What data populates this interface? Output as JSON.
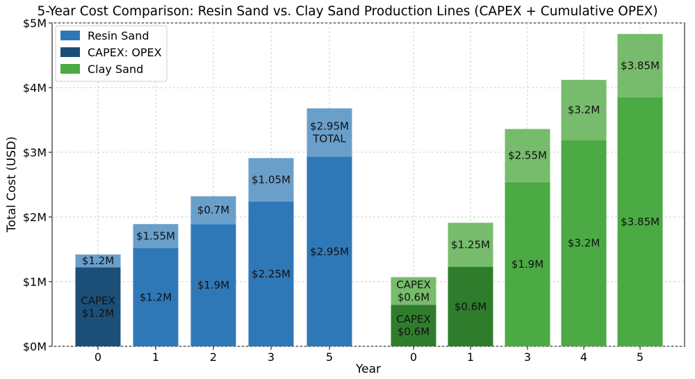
{
  "chart_data": {
    "type": "bar",
    "title": "5-Year Cost Comparison: Resin Sand vs. Clay Sand Production Lines (CAPEX + Cumulative OPEX)",
    "xlabel": "Year",
    "ylabel": "Total Cost (USD)",
    "ylim": [
      0,
      5000000
    ],
    "yticks": [
      "$0M",
      "$1M",
      "$2M",
      "$3M",
      "$4M",
      "$5M"
    ],
    "grid": true,
    "legend_position": "top-left",
    "legend": [
      {
        "label": "Resin Sand",
        "color": "#2f78b8"
      },
      {
        "label": "CAPEX: OPEX",
        "color": "#1b4f78"
      },
      {
        "label": "Clay Sand",
        "color": "#4caa44"
      }
    ],
    "colors": {
      "resin": "#2f78b8",
      "resin_capex": "#1b4f78",
      "resin_top": "#6a9fca",
      "clay": "#4caa44",
      "clay_capex": "#2f7d2c",
      "clay_top": "#77bc6c"
    },
    "series": [
      {
        "name": "Resin Sand",
        "bars": [
          {
            "year": "0",
            "base": 1220000,
            "total": 1420000,
            "base_label": "CAPEX\n$1.2M",
            "top_label": "$1.2M",
            "capex": true
          },
          {
            "year": "1",
            "base": 1520000,
            "total": 1890000,
            "base_label": "$1.2M",
            "top_label": "$1.55M"
          },
          {
            "year": "2",
            "base": 1890000,
            "total": 2320000,
            "base_label": "$1.9M",
            "top_label": "$0.7M"
          },
          {
            "year": "3",
            "base": 2240000,
            "total": 2910000,
            "base_label": "$2.25M",
            "top_label": "$1.05M"
          },
          {
            "year": "5",
            "base": 2930000,
            "total": 3680000,
            "base_label": "$2.95M",
            "top_label": "$2.95M\nTOTAL"
          }
        ]
      },
      {
        "name": "Clay Sand",
        "bars": [
          {
            "year": "0",
            "base": 640000,
            "total": 1070000,
            "base_label": "CAPEX\n$0.6M",
            "top_label": "CAPEX\n$0.6M",
            "capex": true
          },
          {
            "year": "1",
            "base": 1230000,
            "total": 1910000,
            "base_label": "$0.6M",
            "top_label": "$1.25M",
            "capex": true
          },
          {
            "year": "3",
            "base": 2540000,
            "total": 3360000,
            "base_label": "$1.9M",
            "top_label": "$2.55M"
          },
          {
            "year": "4",
            "base": 3190000,
            "total": 4120000,
            "base_label": "$3.2M",
            "top_label": "$3.2M"
          },
          {
            "year": "5",
            "base": 3850000,
            "total": 4830000,
            "base_label": "$3.85M",
            "top_label": "$3.85M"
          }
        ]
      }
    ]
  }
}
